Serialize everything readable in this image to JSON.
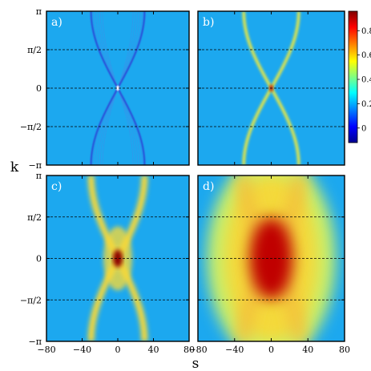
{
  "chart_data": {
    "type": "heatmap",
    "xlabel": "s",
    "ylabel": "k",
    "xlim": [
      -80,
      80
    ],
    "ylim": [
      "-π",
      "π"
    ],
    "x_ticks": [
      "−80",
      "−40",
      "0",
      "40",
      "80"
    ],
    "y_ticks": [
      "π",
      "π/2",
      "0",
      "−π/2",
      "−π"
    ],
    "y_gridlines_dashed": [
      "π/2",
      "0",
      "−π/2"
    ],
    "colorbar": {
      "ticks": [
        "0.8",
        "0.6",
        "0.4",
        "0.2",
        "0"
      ],
      "colors": [
        "#00008f",
        "#0000ff",
        "#0080ff",
        "#00ffff",
        "#80ff80",
        "#ffff00",
        "#ff8000",
        "#ff0000",
        "#800000"
      ]
    },
    "background_color": "#1ca8ef",
    "panels": [
      {
        "label": "a)",
        "description_free": true,
        "ridge_width": 2.2,
        "peak_width": 3,
        "ridge_color": "#2a4fd8",
        "peak_color": "#ffffff"
      },
      {
        "label": "b)",
        "ridge_width": 3.5,
        "peak_width": 4,
        "ridge_color": "#f2ea3b",
        "peak_color": "#b91a0c"
      },
      {
        "label": "c)",
        "ridge_width": 8,
        "peak_width": 10,
        "ridge_color": "#f5d83a",
        "peak_color": "#8b0000"
      },
      {
        "label": "d)",
        "ridge_width": 18,
        "peak_width": 30,
        "ridge_color": "#f3c13b",
        "peak_color": "#c00000"
      }
    ]
  }
}
